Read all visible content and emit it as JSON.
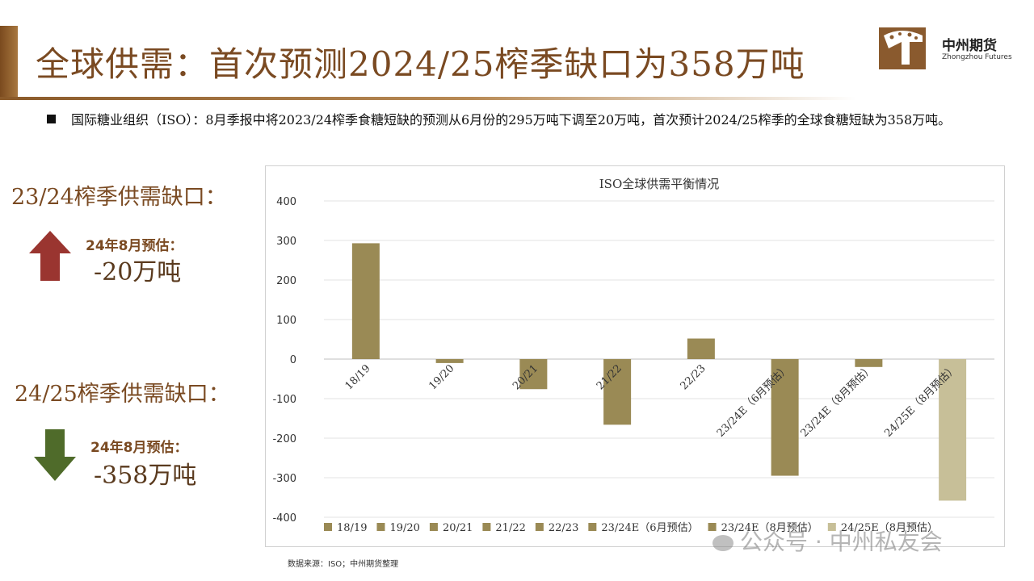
{
  "page": {
    "title": "全球供需：首次预测2024/25榨季缺口为358万吨"
  },
  "logo": {
    "name_cn": "中州期货",
    "name_en": "Zhongzhou Futures"
  },
  "bullet": {
    "text": "国际糖业组织（ISO）：8月季报中将2023/24榨季食糖短缺的预测从6月份的295万吨下调至20万吨，首次预计2024/25榨季的全球食糖短缺为358万吨。"
  },
  "side_panel": {
    "block1": {
      "heading": "23/24榨季供需缺口：",
      "est_label": "24年8月预估：",
      "est_value": "-20万吨",
      "arrow": "arrow-up-icon",
      "arrow_color": "#9a3530"
    },
    "block2": {
      "heading": "24/25榨季供需缺口：",
      "est_label": "24年8月预估：",
      "est_value": "-358万吨",
      "arrow": "arrow-down-icon",
      "arrow_color": "#4f6b2a"
    }
  },
  "chart_data": {
    "type": "bar",
    "title": "ISO全球供需平衡情况",
    "categories": [
      "18/19",
      "19/20",
      "20/21",
      "21/22",
      "22/23",
      "23/24E（6月预估）",
      "23/24E（8月预估）",
      "24/25E（8月预估）"
    ],
    "values": [
      293,
      -10,
      -76,
      -166,
      52,
      -295,
      -20,
      -358
    ],
    "colors": [
      "#9a8a55",
      "#9a8a55",
      "#9a8a55",
      "#9a8a55",
      "#9a8a55",
      "#9a8a55",
      "#9a8a55",
      "#c7bf98"
    ],
    "ylim": [
      -400,
      400
    ],
    "yticks": [
      "400",
      "300",
      "200",
      "100",
      "0",
      "-100",
      "-200",
      "-300",
      "-400"
    ],
    "grid": true,
    "legend_position": "bottom"
  },
  "footer": {
    "source": "数据来源：ISO；中州期货整理",
    "watermark": "公众号 · 中州私友会"
  }
}
